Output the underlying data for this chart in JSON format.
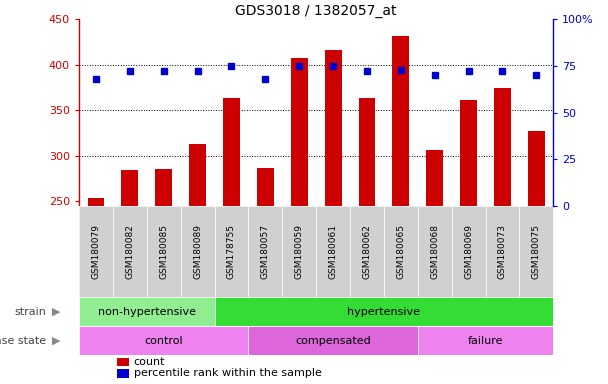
{
  "title": "GDS3018 / 1382057_at",
  "samples": [
    "GSM180079",
    "GSM180082",
    "GSM180085",
    "GSM180089",
    "GSM178755",
    "GSM180057",
    "GSM180059",
    "GSM180061",
    "GSM180062",
    "GSM180065",
    "GSM180068",
    "GSM180069",
    "GSM180073",
    "GSM180075"
  ],
  "counts": [
    254,
    284,
    285,
    313,
    363,
    287,
    407,
    416,
    364,
    432,
    306,
    361,
    374,
    327
  ],
  "percentile": [
    68,
    72,
    72,
    72,
    75,
    68,
    75,
    75,
    72,
    73,
    70,
    72,
    72,
    70
  ],
  "ylim_left": [
    245,
    450
  ],
  "ylim_right": [
    0,
    100
  ],
  "yticks_left": [
    250,
    300,
    350,
    400,
    450
  ],
  "yticks_right": [
    0,
    25,
    50,
    75,
    100
  ],
  "bar_color": "#cc0000",
  "dot_color": "#0000cc",
  "bar_width": 0.5,
  "strain_groups": [
    {
      "label": "non-hypertensive",
      "start": 0,
      "end": 4,
      "color": "#90ee90"
    },
    {
      "label": "hypertensive",
      "start": 4,
      "end": 14,
      "color": "#33dd33"
    }
  ],
  "disease_groups": [
    {
      "label": "control",
      "start": 0,
      "end": 5,
      "color": "#ee82ee"
    },
    {
      "label": "compensated",
      "start": 5,
      "end": 10,
      "color": "#dd66dd"
    },
    {
      "label": "failure",
      "start": 10,
      "end": 14,
      "color": "#ee82ee"
    }
  ],
  "legend_items": [
    {
      "label": "count",
      "color": "#cc0000"
    },
    {
      "label": "percentile rank within the sample",
      "color": "#0000cc"
    }
  ],
  "xtick_bg": "#d0d0d0",
  "grid_color": "#000000",
  "grid_linestyle": ":",
  "grid_linewidth": 0.7
}
